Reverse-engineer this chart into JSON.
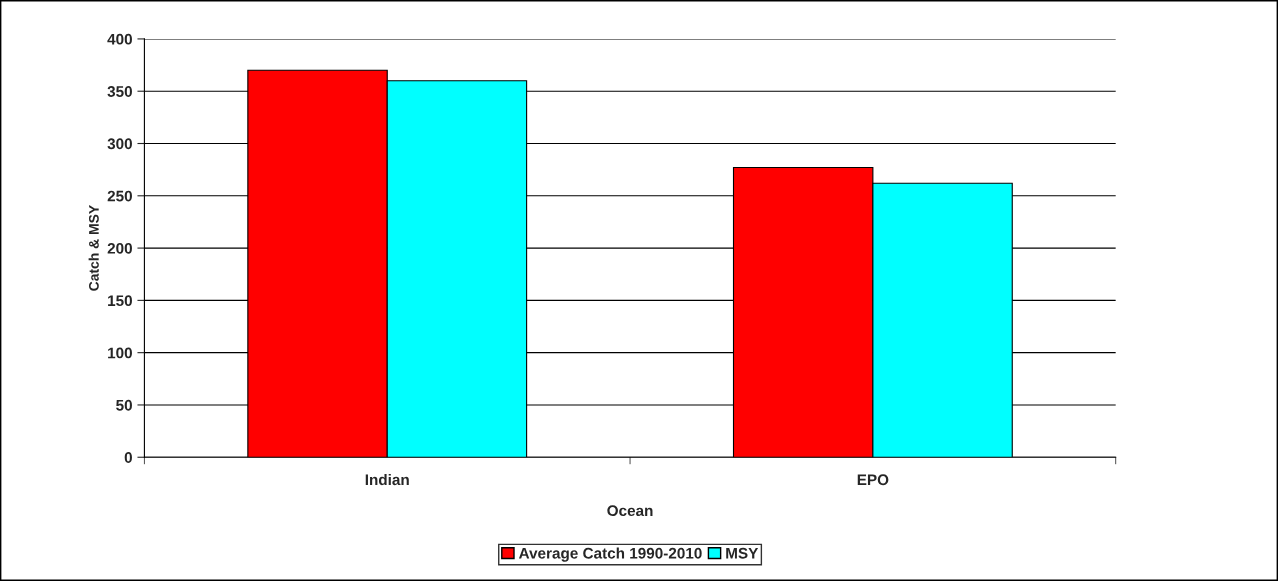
{
  "chart_data": {
    "type": "bar",
    "xlabel": "Ocean",
    "ylabel": "Catch & MSY",
    "categories": [
      "Indian",
      "EPO"
    ],
    "series": [
      {
        "name": "Average Catch 1990-2010",
        "color": "#ff0000",
        "values": [
          370,
          277
        ]
      },
      {
        "name": "MSY",
        "color": "#00ffff",
        "values": [
          360,
          262
        ]
      }
    ],
    "ylim": [
      0,
      400
    ],
    "yticks": [
      0,
      50,
      100,
      150,
      200,
      250,
      300,
      350,
      400
    ],
    "grid": "y",
    "legend": "bottom"
  }
}
